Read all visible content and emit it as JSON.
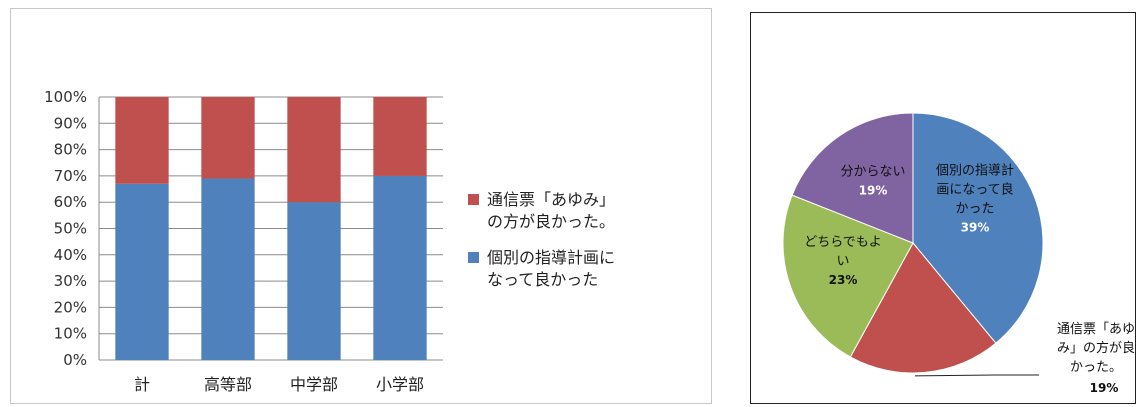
{
  "chart_data": [
    {
      "type": "bar",
      "stacked": true,
      "percent": true,
      "categories": [
        "計",
        "高等部",
        "中学部",
        "小学部"
      ],
      "series": [
        {
          "name": "個別の指導計画になって良かった",
          "color": "#4f81bd",
          "values": [
            67,
            69,
            60,
            70
          ]
        },
        {
          "name": "通信票「あゆみ」の方が良かった。",
          "color": "#c0504d",
          "values": [
            33,
            31,
            40,
            30
          ]
        }
      ],
      "ylim": [
        0,
        100
      ],
      "yticks": [
        "0%",
        "10%",
        "20%",
        "30%",
        "40%",
        "50%",
        "60%",
        "70%",
        "80%",
        "90%",
        "100%"
      ],
      "grid": true,
      "legend_position": "right",
      "legend": [
        {
          "color": "#c0504d",
          "lines": [
            "通信票「あゆみ」",
            "の方が良かった。"
          ]
        },
        {
          "color": "#4f81bd",
          "lines": [
            "個別の指導計画に",
            "なって良かった"
          ]
        }
      ]
    },
    {
      "type": "pie",
      "slices": [
        {
          "label_lines": [
            "個別の指導計",
            "画になって良",
            "かった"
          ],
          "value": 39,
          "pct_label": "39%",
          "color": "#4f81bd"
        },
        {
          "label_lines": [
            "通信票「あゆ",
            "み」の方が良",
            "かった。"
          ],
          "value": 19,
          "pct_label": "19%",
          "color": "#c0504d"
        },
        {
          "label_lines": [
            "どちらでもよ",
            "い"
          ],
          "value": 23,
          "pct_label": "23%",
          "color": "#9bbb59"
        },
        {
          "label_lines": [
            "分からない"
          ],
          "value": 19,
          "pct_label": "19%",
          "color": "#8064a2"
        }
      ]
    }
  ]
}
